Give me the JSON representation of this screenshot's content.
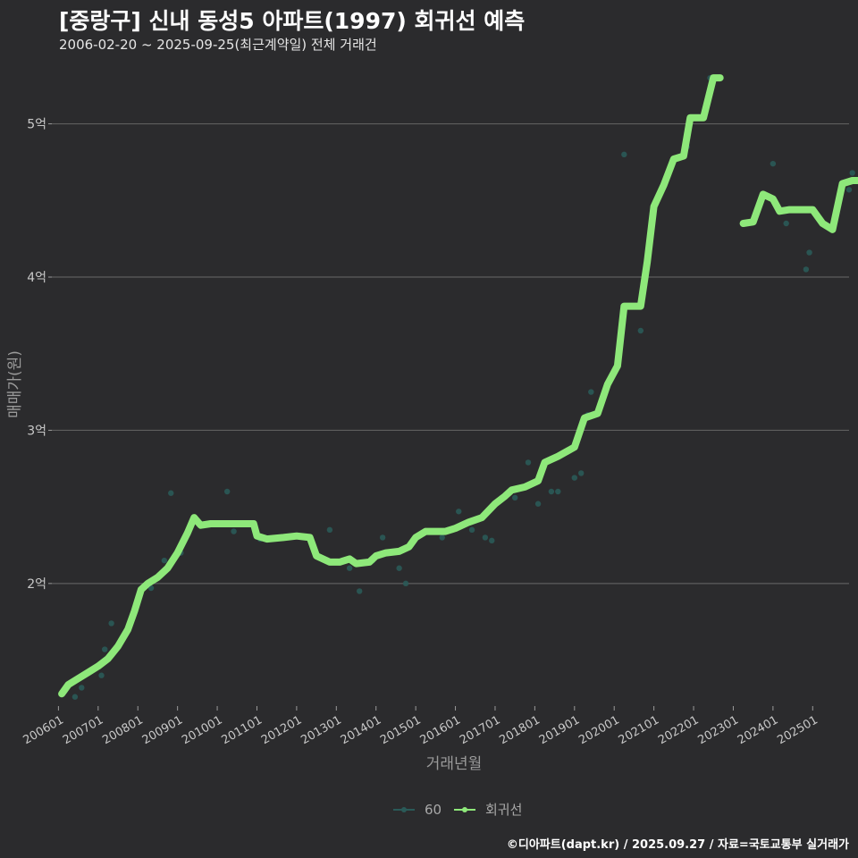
{
  "title": "[중랑구] 신내 동성5 아파트(1997) 회귀선 예측",
  "subtitle": "2006-02-20 ~ 2025-09-25(최근계약일) 전체 거래건",
  "credit": "©디아파트(dapt.kr) / 2025.09.27 / 자료=국토교통부 실거래가",
  "colors": {
    "background": "#2b2b2d",
    "grid": "#5e5e5e",
    "regression": "#8ee87a",
    "scatter": "#2a5a58"
  },
  "chart_data": {
    "type": "line",
    "xlabel": "거래년월",
    "ylabel": "매매가(원)",
    "x_range": [
      "2005-11",
      "2025-12"
    ],
    "ylim": [
      1.2,
      5.4
    ],
    "y_ticks": [
      {
        "value": 2,
        "label": "2억"
      },
      {
        "value": 3,
        "label": "3억"
      },
      {
        "value": 4,
        "label": "4억"
      },
      {
        "value": 5,
        "label": "5억"
      }
    ],
    "x_ticks": [
      "200601",
      "200701",
      "200801",
      "200901",
      "201001",
      "201101",
      "201201",
      "201301",
      "201401",
      "201501",
      "201601",
      "201701",
      "201801",
      "201901",
      "202001",
      "202101",
      "202201",
      "202301",
      "202401",
      "202501"
    ],
    "legend": {
      "position": "bottom",
      "entries": [
        {
          "label": "60",
          "color": "#2a5a58"
        },
        {
          "label": "회귀선",
          "color": "#8ee87a"
        }
      ]
    },
    "series": [
      {
        "name": "회귀선",
        "segments": [
          [
            [
              "2006-02",
              1.28
            ],
            [
              "2006-04",
              1.34
            ],
            [
              "2006-07",
              1.38
            ],
            [
              "2006-10",
              1.42
            ],
            [
              "2007-01",
              1.46
            ],
            [
              "2007-04",
              1.51
            ],
            [
              "2007-07",
              1.59
            ],
            [
              "2007-10",
              1.7
            ],
            [
              "2007-12",
              1.82
            ],
            [
              "2008-02",
              1.96
            ],
            [
              "2008-04",
              2.0
            ],
            [
              "2008-07",
              2.04
            ],
            [
              "2008-10",
              2.1
            ],
            [
              "2009-01",
              2.2
            ],
            [
              "2009-04",
              2.33
            ],
            [
              "2009-06",
              2.43
            ],
            [
              "2009-08",
              2.38
            ],
            [
              "2009-11",
              2.39
            ],
            [
              "2010-03",
              2.39
            ],
            [
              "2010-08",
              2.39
            ],
            [
              "2010-12",
              2.39
            ],
            [
              "2011-01",
              2.31
            ],
            [
              "2011-04",
              2.29
            ],
            [
              "2011-09",
              2.3
            ],
            [
              "2012-01",
              2.31
            ],
            [
              "2012-05",
              2.3
            ],
            [
              "2012-07",
              2.18
            ],
            [
              "2012-11",
              2.14
            ],
            [
              "2013-02",
              2.14
            ],
            [
              "2013-05",
              2.16
            ],
            [
              "2013-07",
              2.13
            ],
            [
              "2013-11",
              2.14
            ],
            [
              "2014-01",
              2.18
            ],
            [
              "2014-04",
              2.2
            ],
            [
              "2014-08",
              2.21
            ],
            [
              "2014-11",
              2.24
            ],
            [
              "2015-01",
              2.3
            ],
            [
              "2015-04",
              2.34
            ],
            [
              "2015-10",
              2.34
            ],
            [
              "2016-01",
              2.36
            ],
            [
              "2016-05",
              2.4
            ],
            [
              "2016-09",
              2.43
            ],
            [
              "2017-01",
              2.52
            ],
            [
              "2017-04",
              2.57
            ],
            [
              "2017-06",
              2.61
            ],
            [
              "2017-10",
              2.63
            ],
            [
              "2018-02",
              2.67
            ],
            [
              "2018-04",
              2.79
            ],
            [
              "2018-08",
              2.83
            ],
            [
              "2019-01",
              2.89
            ],
            [
              "2019-04",
              3.08
            ],
            [
              "2019-08",
              3.11
            ],
            [
              "2019-11",
              3.3
            ],
            [
              "2020-02",
              3.42
            ],
            [
              "2020-04",
              3.81
            ],
            [
              "2020-09",
              3.81
            ],
            [
              "2020-11",
              4.1
            ],
            [
              "2021-01",
              4.46
            ],
            [
              "2021-04",
              4.6
            ],
            [
              "2021-07",
              4.77
            ],
            [
              "2021-10",
              4.79
            ],
            [
              "2021-12",
              5.04
            ],
            [
              "2022-04",
              5.04
            ],
            [
              "2022-07",
              5.3
            ],
            [
              "2022-09",
              5.3
            ]
          ],
          [
            [
              "2023-04",
              4.35
            ],
            [
              "2023-07",
              4.36
            ],
            [
              "2023-10",
              4.54
            ],
            [
              "2024-01",
              4.51
            ],
            [
              "2024-03",
              4.43
            ],
            [
              "2024-06",
              4.44
            ],
            [
              "2024-10",
              4.44
            ],
            [
              "2025-01",
              4.44
            ],
            [
              "2025-04",
              4.35
            ],
            [
              "2025-07",
              4.31
            ],
            [
              "2025-10",
              4.61
            ],
            [
              "2026-01",
              4.63
            ],
            [
              "2026-05",
              4.63
            ]
          ]
        ]
      },
      {
        "name": "60",
        "points": [
          [
            "2006-03",
            1.3
          ],
          [
            "2006-06",
            1.26
          ],
          [
            "2006-08",
            1.32
          ],
          [
            "2007-02",
            1.4
          ],
          [
            "2007-03",
            1.57
          ],
          [
            "2007-05",
            1.74
          ],
          [
            "2008-05",
            1.97
          ],
          [
            "2008-09",
            2.15
          ],
          [
            "2008-11",
            2.59
          ],
          [
            "2009-02",
            2.2
          ],
          [
            "2010-04",
            2.6
          ],
          [
            "2010-06",
            2.34
          ],
          [
            "2011-02",
            2.29
          ],
          [
            "2011-05",
            2.29
          ],
          [
            "2012-05",
            2.3
          ],
          [
            "2012-11",
            2.35
          ],
          [
            "2013-05",
            2.1
          ],
          [
            "2013-08",
            1.95
          ],
          [
            "2013-12",
            2.15
          ],
          [
            "2014-03",
            2.3
          ],
          [
            "2014-08",
            2.1
          ],
          [
            "2014-10",
            2.0
          ],
          [
            "2015-09",
            2.3
          ],
          [
            "2016-02",
            2.47
          ],
          [
            "2016-06",
            2.35
          ],
          [
            "2016-10",
            2.3
          ],
          [
            "2016-12",
            2.28
          ],
          [
            "2017-03",
            2.56
          ],
          [
            "2017-07",
            2.56
          ],
          [
            "2017-11",
            2.79
          ],
          [
            "2018-02",
            2.52
          ],
          [
            "2018-06",
            2.6
          ],
          [
            "2018-08",
            2.6
          ],
          [
            "2019-01",
            2.69
          ],
          [
            "2019-03",
            2.72
          ],
          [
            "2019-05",
            3.1
          ],
          [
            "2019-06",
            3.25
          ],
          [
            "2020-04",
            4.8
          ],
          [
            "2020-09",
            3.65
          ],
          [
            "2021-11",
            4.85
          ],
          [
            "2022-06",
            5.3
          ],
          [
            "2024-01",
            4.74
          ],
          [
            "2024-05",
            4.35
          ],
          [
            "2024-11",
            4.05
          ],
          [
            "2024-12",
            4.16
          ],
          [
            "2025-12",
            4.57
          ],
          [
            "2026-01",
            4.68
          ]
        ]
      }
    ]
  }
}
